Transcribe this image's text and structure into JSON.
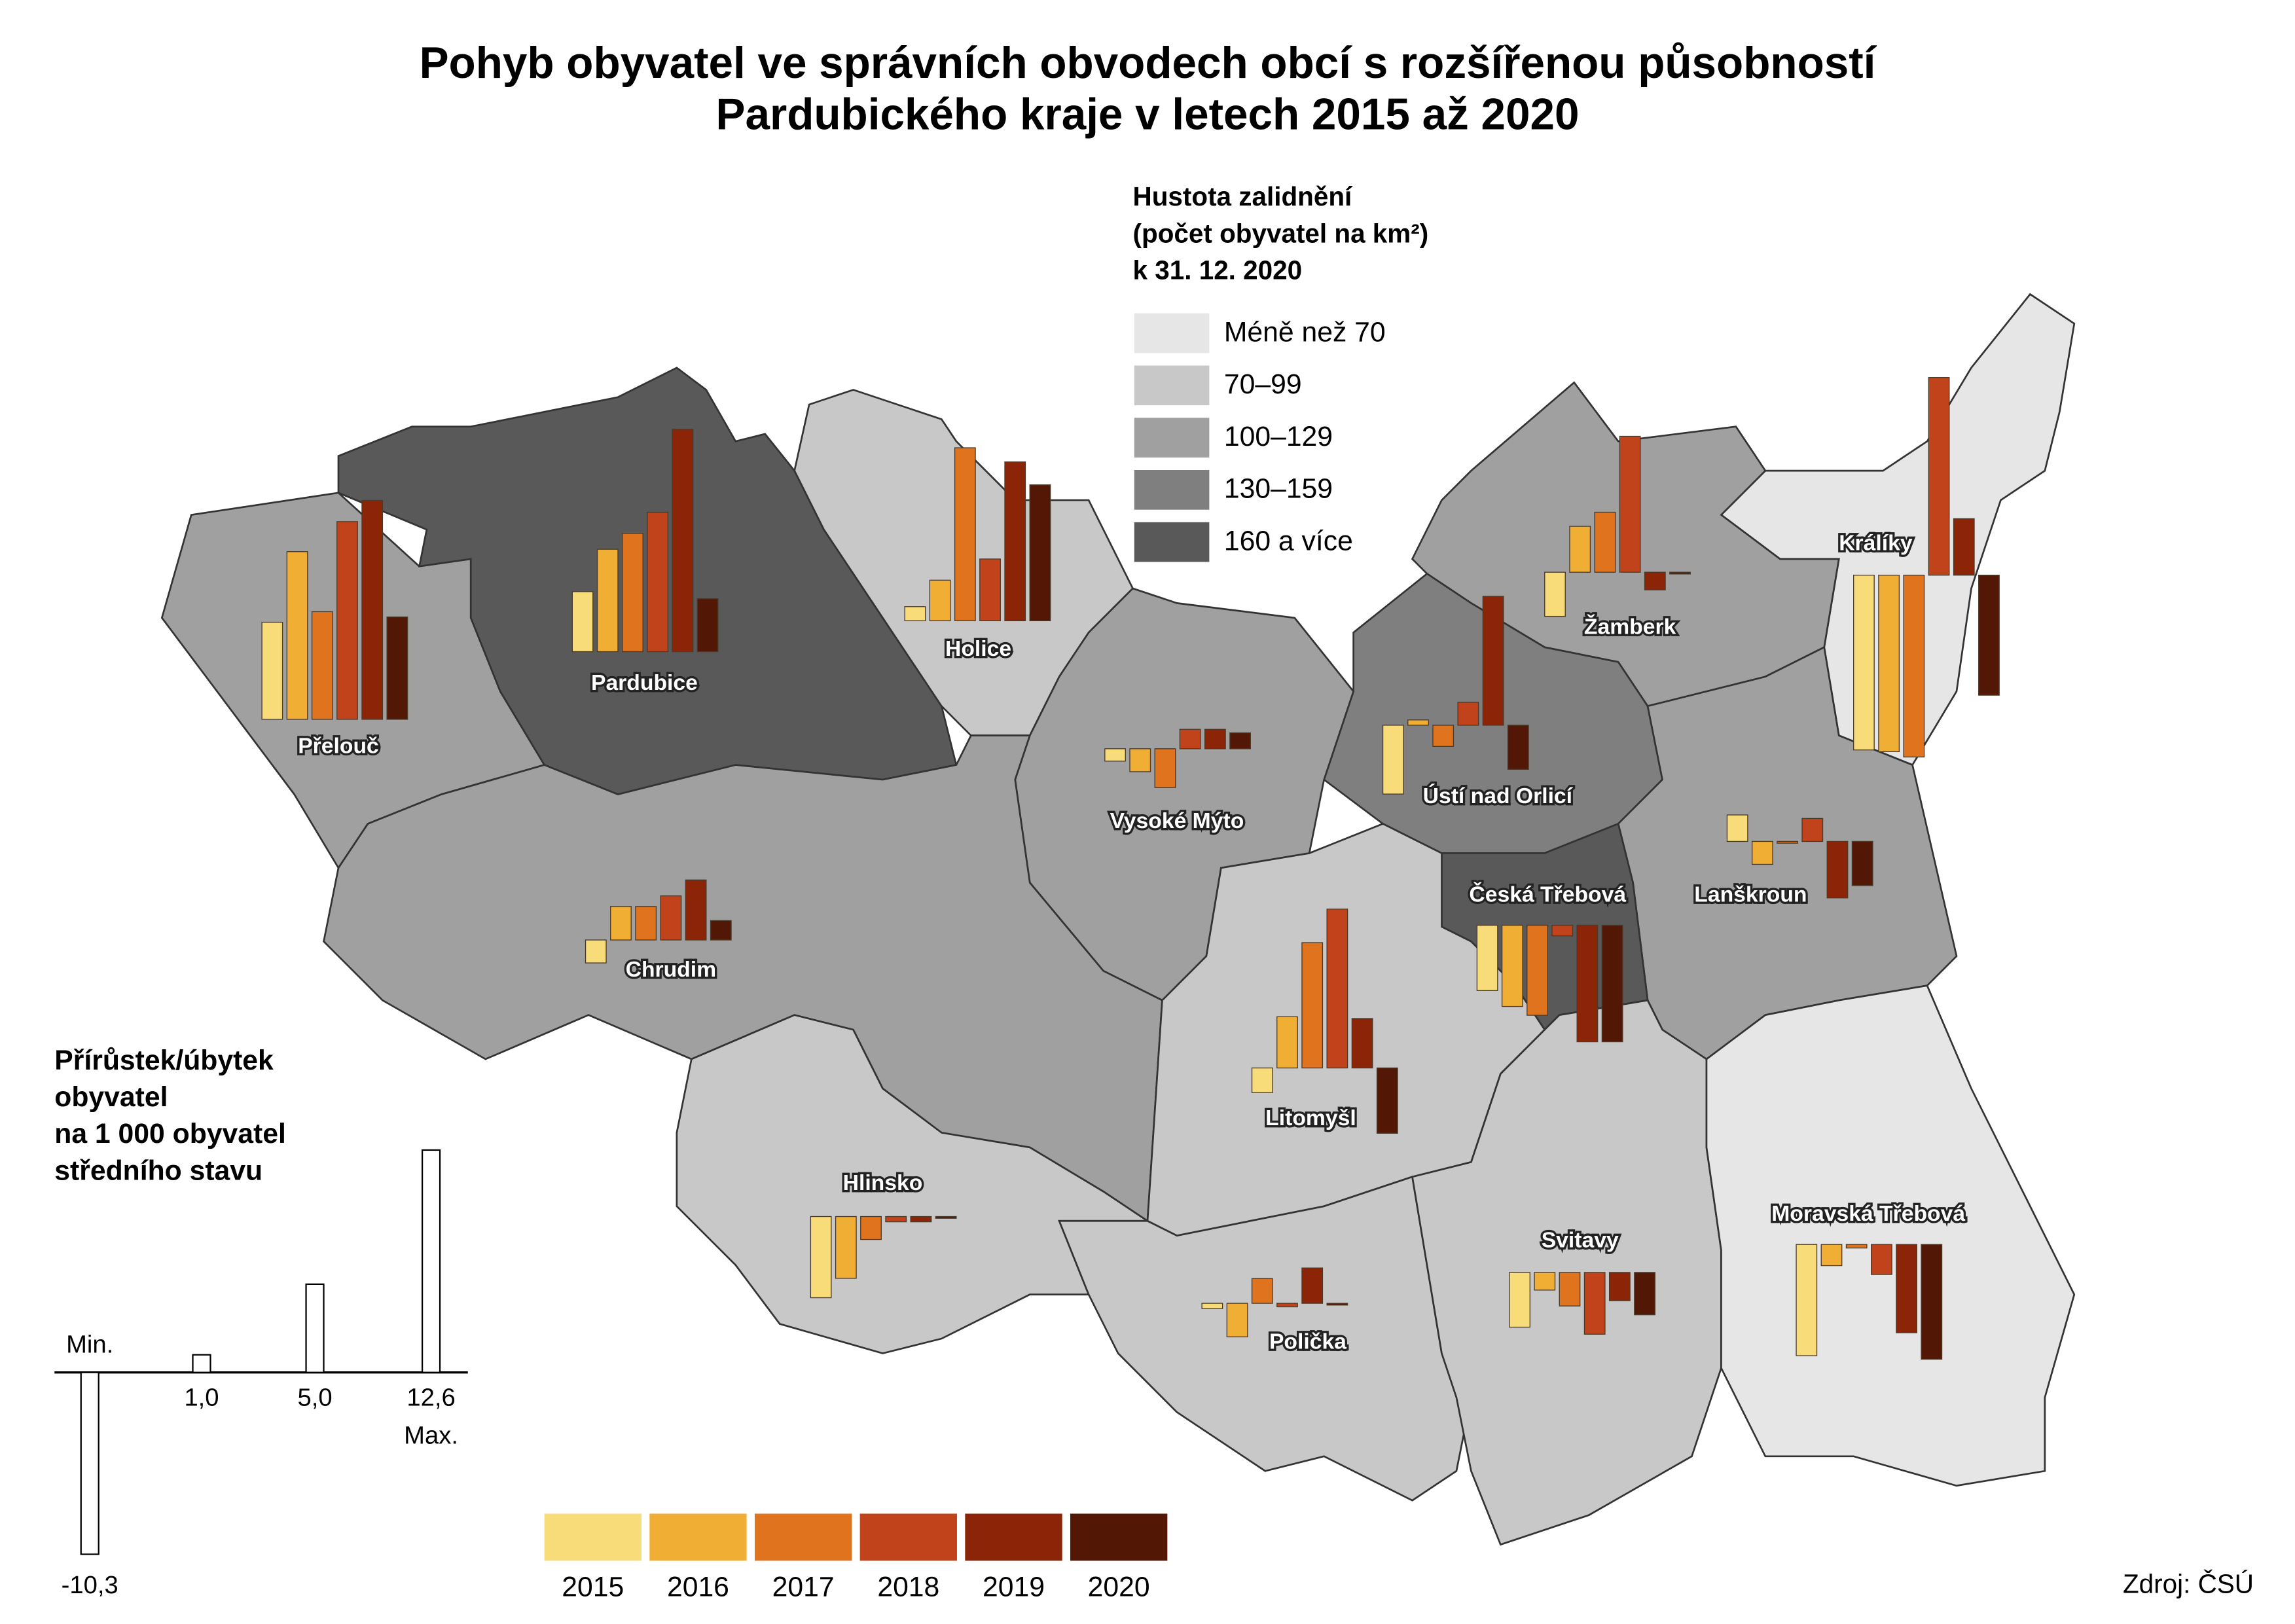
{
  "map": {
    "title": [
      "Pohyb obyvatel ve správních obvodech obcí s rozšířenou působností",
      "Pardubického kraje v letech 2015 až 2020"
    ],
    "density_legend": {
      "title": [
        "Hustota zalidnění",
        "(počet obyvatel na km²)",
        "k 31. 12. 2020"
      ],
      "classes": [
        {
          "label": "Méně než 70",
          "color": "#e6e6e6"
        },
        {
          "label": "70–99",
          "color": "#c8c8c8"
        },
        {
          "label": "100–129",
          "color": "#a0a0a0"
        },
        {
          "label": "130–159",
          "color": "#7f7f7f"
        },
        {
          "label": "160 a více",
          "color": "#595959"
        }
      ]
    },
    "years": [
      {
        "label": "2015",
        "color": "#f9dc7a"
      },
      {
        "label": "2016",
        "color": "#f0ae35"
      },
      {
        "label": "2017",
        "color": "#e0731e"
      },
      {
        "label": "2018",
        "color": "#c0431b"
      },
      {
        "label": "2019",
        "color": "#8c2508"
      },
      {
        "label": "2020",
        "color": "#521705"
      }
    ],
    "scale_legend": {
      "title": [
        "Přírůstek/úbytek",
        "obyvatel",
        "na 1 000 obyvatel",
        "středního stavu"
      ],
      "min_label": "Min.",
      "max_label": "Max.",
      "items": [
        {
          "value": -10.3,
          "label": "-10,3"
        },
        {
          "value": 1.0,
          "label": "1,0"
        },
        {
          "value": 5.0,
          "label": "5,0"
        },
        {
          "value": 12.6,
          "label": "12,6"
        }
      ]
    },
    "districts": [
      {
        "name": "Přelouč",
        "density": "100–129",
        "values": [
          5.5,
          9.5,
          6.1,
          11.2,
          12.4,
          5.8
        ]
      },
      {
        "name": "Pardubice",
        "density": "160 a více",
        "values": [
          3.4,
          5.8,
          6.7,
          7.9,
          12.6,
          3.0
        ]
      },
      {
        "name": "Holice",
        "density": "70–99",
        "values": [
          0.8,
          2.3,
          9.8,
          3.5,
          9.0,
          7.7
        ]
      },
      {
        "name": "Králíky",
        "density": "Méně než 70",
        "values": [
          -9.9,
          -10.0,
          -10.3,
          11.2,
          3.2,
          -6.8
        ]
      },
      {
        "name": "Žamberk",
        "density": "100–129",
        "values": [
          -2.5,
          2.6,
          3.4,
          7.7,
          -1.0,
          -0.1
        ]
      },
      {
        "name": "Ústí nad Orlicí",
        "density": "130–159",
        "values": [
          -3.9,
          0.3,
          -1.2,
          1.3,
          7.3,
          -2.5
        ]
      },
      {
        "name": "Vysoké Mýto",
        "density": "100–129",
        "values": [
          -0.7,
          -1.3,
          -2.2,
          1.1,
          1.1,
          0.9
        ]
      },
      {
        "name": "Chrudim",
        "density": "100–129",
        "values": [
          -1.3,
          1.9,
          1.9,
          2.5,
          3.4,
          1.1
        ]
      },
      {
        "name": "Lanškroun",
        "density": "100–129",
        "values": [
          1.5,
          -1.3,
          -0.1,
          1.3,
          -3.2,
          -2.5
        ]
      },
      {
        "name": "Česká Třebová",
        "density": "160 a více",
        "values": [
          -3.7,
          -4.6,
          -5.1,
          -0.6,
          -6.6,
          -6.6
        ]
      },
      {
        "name": "Litomyšl",
        "density": "70–99",
        "values": [
          -1.4,
          2.9,
          7.1,
          9.0,
          2.8,
          -3.7
        ]
      },
      {
        "name": "Hlinsko",
        "density": "70–99",
        "values": [
          -4.6,
          -3.5,
          -1.3,
          -0.3,
          -0.3,
          -0.1
        ]
      },
      {
        "name": "Polička",
        "density": "70–99",
        "values": [
          -0.3,
          -1.9,
          1.4,
          -0.2,
          2.0,
          -0.1
        ]
      },
      {
        "name": "Svitavy",
        "density": "70–99",
        "values": [
          -3.1,
          -1.0,
          -1.9,
          -3.5,
          -1.6,
          -2.4
        ]
      },
      {
        "name": "Moravská Třebová",
        "density": "Méně než 70",
        "values": [
          -6.3,
          -1.2,
          -0.2,
          -1.7,
          -5.0,
          -6.5
        ]
      }
    ],
    "source": "Zdroj: ČSÚ"
  }
}
